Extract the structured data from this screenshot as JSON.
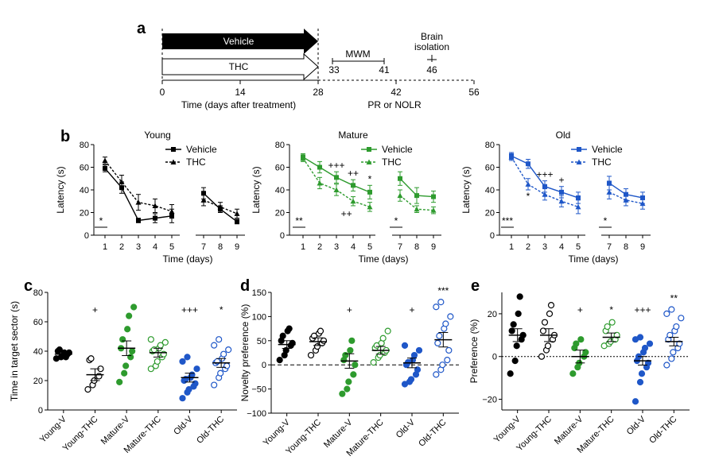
{
  "panel_labels": {
    "a": "a",
    "b": "b",
    "c": "c",
    "d": "d",
    "e": "e"
  },
  "timeline": {
    "vehicle_label": "Vehicle",
    "thc_label": "THC",
    "mwm_label": "MWM",
    "mwm_start": "33",
    "mwm_end": "41",
    "brain_label_1": "Brain",
    "brain_label_2": "isolation",
    "brain_day": "46",
    "ticks": [
      "0",
      "14",
      "28",
      "42",
      "56"
    ],
    "tick_values": [
      0,
      14,
      28,
      42,
      56
    ],
    "xlabel": "Time (days after treatment)",
    "pr_label": "PR or  NOLR",
    "colors": {
      "vehicle": "#000000",
      "thc": "#ffffff"
    }
  },
  "chart_data": [
    {
      "type": "line",
      "panel": "b",
      "title": "Young",
      "color": "#000000",
      "ylabel": "Latency (s)",
      "xlabel": "Time (days)",
      "ylim": [
        0,
        80
      ],
      "yticks": [
        "0",
        "20",
        "40",
        "60",
        "80"
      ],
      "legend": [
        "Vehicle",
        "THC"
      ],
      "legend_position": "top-right",
      "x": [
        1,
        2,
        3,
        4,
        5,
        7,
        8,
        9
      ],
      "series": [
        {
          "name": "Vehicle",
          "values": [
            59,
            42,
            13,
            15,
            17,
            37,
            23,
            12
          ],
          "errors": [
            3,
            5,
            2,
            4,
            6,
            5,
            3,
            2
          ]
        },
        {
          "name": "THC",
          "values": [
            66,
            47,
            29,
            26,
            21,
            31,
            25,
            19
          ],
          "errors": [
            3,
            6,
            7,
            6,
            6,
            5,
            4,
            4
          ]
        }
      ],
      "significance": [
        {
          "x": 1,
          "label": "*"
        }
      ]
    },
    {
      "type": "line",
      "panel": "b",
      "title": "Mature",
      "color": "#2e9b2e",
      "ylabel": "Latency (s)",
      "xlabel": "Time (days)",
      "ylim": [
        0,
        80
      ],
      "yticks": [
        "0",
        "20",
        "40",
        "60",
        "80"
      ],
      "legend": [
        "Vehicle",
        "THC"
      ],
      "legend_position": "top-right",
      "x": [
        1,
        2,
        3,
        4,
        5,
        7,
        8,
        9
      ],
      "series": [
        {
          "name": "Vehicle",
          "values": [
            69,
            60,
            51,
            44,
            38,
            50,
            35,
            34
          ],
          "errors": [
            3,
            5,
            5,
            5,
            6,
            6,
            7,
            5
          ]
        },
        {
          "name": "THC",
          "values": [
            68,
            46,
            40,
            30,
            25,
            35,
            23,
            22
          ],
          "errors": [
            3,
            5,
            5,
            4,
            4,
            5,
            3,
            3
          ]
        }
      ],
      "significance": [
        {
          "x": 1,
          "label": "**"
        },
        {
          "x": 7,
          "label": "*"
        }
      ],
      "annotations": [
        {
          "x": 3,
          "label": "+++"
        },
        {
          "x": 4,
          "label": "++"
        },
        {
          "x": 5,
          "label": "*"
        },
        {
          "x": 3.6,
          "label": "++"
        }
      ]
    },
    {
      "type": "line",
      "panel": "b",
      "title": "Old",
      "color": "#1f57c8",
      "ylabel": "Latency (s)",
      "xlabel": "Time (days)",
      "ylim": [
        0,
        80
      ],
      "yticks": [
        "0",
        "20",
        "40",
        "60",
        "80"
      ],
      "legend": [
        "Vehicle",
        "THC"
      ],
      "legend_position": "top-right",
      "x": [
        1,
        2,
        3,
        4,
        5,
        7,
        8,
        9
      ],
      "series": [
        {
          "name": "Vehicle",
          "values": [
            70,
            63,
            43,
            38,
            33,
            46,
            36,
            33
          ],
          "errors": [
            3,
            4,
            5,
            5,
            5,
            6,
            5,
            5
          ]
        },
        {
          "name": "THC",
          "values": [
            69,
            45,
            36,
            30,
            25,
            38,
            31,
            28
          ],
          "errors": [
            3,
            5,
            5,
            5,
            6,
            6,
            5,
            5
          ]
        }
      ],
      "significance": [
        {
          "x": 1,
          "label": "***"
        },
        {
          "x": 7,
          "label": "*"
        },
        {
          "x": 2,
          "label": "*"
        }
      ],
      "annotations": [
        {
          "x": 3,
          "label": "+++"
        },
        {
          "x": 4,
          "label": "+"
        }
      ]
    },
    {
      "type": "scatter",
      "panel": "c",
      "ylabel": "Time in target sector (s)",
      "ylim": [
        0,
        80
      ],
      "yticks": [
        "0",
        "20",
        "40",
        "60",
        "80"
      ],
      "categories": [
        "Young-V",
        "Young-THC",
        "Mature-V",
        "Mature-THC",
        "Old-V",
        "Old-THC"
      ],
      "means": [
        38,
        24,
        42,
        39,
        22,
        32
      ],
      "sems": [
        2,
        4,
        5,
        3,
        3,
        3
      ],
      "points": [
        [
          35,
          36,
          37,
          38,
          39,
          40,
          41,
          39,
          36
        ],
        [
          14,
          17,
          20,
          23,
          28,
          34,
          35
        ],
        [
          19,
          25,
          30,
          36,
          40,
          42,
          48,
          55,
          64,
          70
        ],
        [
          28,
          30,
          33,
          36,
          38,
          40,
          41,
          42,
          44,
          46,
          48
        ],
        [
          8,
          12,
          14,
          16,
          18,
          20,
          21,
          22,
          24,
          28,
          33,
          36
        ],
        [
          17,
          22,
          25,
          28,
          30,
          32,
          33,
          35,
          38,
          41,
          44,
          48
        ]
      ],
      "filled": [
        true,
        false,
        true,
        false,
        true,
        false
      ],
      "colors": [
        "#000000",
        "#000000",
        "#2e9b2e",
        "#2e9b2e",
        "#1f57c8",
        "#1f57c8"
      ],
      "annotations": [
        {
          "group": 1,
          "label": "+"
        },
        {
          "group": 4,
          "label": "+++"
        },
        {
          "group": 5,
          "label": "*"
        }
      ]
    },
    {
      "type": "scatter",
      "panel": "d",
      "ylabel": "Novelty preference (%)",
      "ylim": [
        -100,
        150
      ],
      "yticks": [
        "−100",
        "−50",
        "0",
        "50",
        "100",
        "150"
      ],
      "ytick_values": [
        -100,
        -50,
        0,
        50,
        100,
        150
      ],
      "categories": [
        "Young-V",
        "Young-THC",
        "Mature-V",
        "Mature-THC",
        "Old-V",
        "Old-THC"
      ],
      "means": [
        42,
        48,
        8,
        30,
        4,
        52
      ],
      "sems": [
        8,
        8,
        15,
        8,
        10,
        15
      ],
      "points": [
        [
          10,
          20,
          30,
          40,
          45,
          50,
          60,
          70,
          75
        ],
        [
          20,
          30,
          38,
          45,
          50,
          55,
          60,
          65,
          70
        ],
        [
          -60,
          -50,
          -35,
          -20,
          0,
          10,
          20,
          30,
          50
        ],
        [
          5,
          15,
          20,
          25,
          30,
          35,
          40,
          45,
          55,
          70
        ],
        [
          -40,
          -35,
          -30,
          -20,
          -10,
          0,
          5,
          10,
          20,
          30,
          40
        ],
        [
          -20,
          -10,
          0,
          10,
          30,
          45,
          60,
          75,
          85,
          100,
          120,
          130
        ]
      ],
      "filled": [
        true,
        false,
        true,
        false,
        true,
        false
      ],
      "colors": [
        "#000000",
        "#000000",
        "#2e9b2e",
        "#2e9b2e",
        "#1f57c8",
        "#1f57c8"
      ],
      "annotations": [
        {
          "group": 2,
          "label": "+"
        },
        {
          "group": 4,
          "label": "+"
        },
        {
          "group": 5,
          "label": "***"
        }
      ]
    },
    {
      "type": "scatter",
      "panel": "e",
      "ylabel": "Preference (%)",
      "ylim": [
        -25,
        30
      ],
      "yticks": [
        "−20",
        "0",
        "20"
      ],
      "ytick_values": [
        -20,
        0,
        20
      ],
      "categories": [
        "Young-V",
        "Young-THC",
        "Mature-V",
        "Mature-THC",
        "Old-V",
        "Old-THC"
      ],
      "means": [
        10,
        10,
        0,
        9,
        -2,
        7
      ],
      "sems": [
        3,
        3,
        3,
        2,
        2,
        2
      ],
      "points": [
        [
          -8,
          -2,
          5,
          8,
          10,
          12,
          15,
          20,
          28
        ],
        [
          0,
          3,
          5,
          8,
          10,
          12,
          16,
          20,
          24
        ],
        [
          -8,
          -5,
          -3,
          0,
          2,
          4,
          6,
          8
        ],
        [
          5,
          6,
          7,
          8,
          10,
          12,
          14,
          16
        ],
        [
          -21,
          -12,
          -8,
          -5,
          -3,
          -2,
          0,
          2,
          4,
          6,
          8,
          9
        ],
        [
          -4,
          -1,
          2,
          4,
          6,
          8,
          10,
          12,
          14,
          18,
          20,
          22
        ]
      ],
      "filled": [
        true,
        false,
        true,
        false,
        true,
        false
      ],
      "colors": [
        "#000000",
        "#000000",
        "#2e9b2e",
        "#2e9b2e",
        "#1f57c8",
        "#1f57c8"
      ],
      "annotations": [
        {
          "group": 2,
          "label": "+"
        },
        {
          "group": 3,
          "label": "*"
        },
        {
          "group": 4,
          "label": "+++"
        },
        {
          "group": 5,
          "label": "**"
        }
      ]
    }
  ]
}
